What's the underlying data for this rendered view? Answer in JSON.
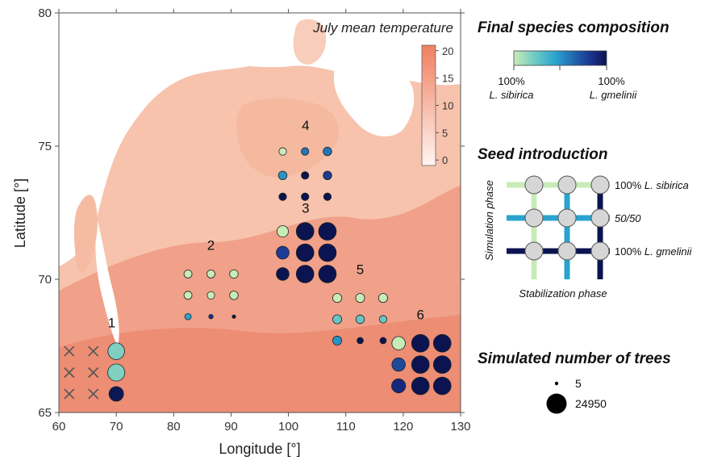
{
  "chart_data": {
    "type": "scatter",
    "title": "",
    "map_label": "July mean temperature",
    "xlabel": "Longitude [°]",
    "ylabel": "Latitude [°]",
    "xlim": [
      60,
      130
    ],
    "ylim": [
      65,
      80
    ],
    "x_ticks": [
      "60",
      "70",
      "80",
      "90",
      "100",
      "110",
      "120",
      "130"
    ],
    "y_ticks": [
      "65",
      "70",
      "75",
      "80"
    ],
    "temperature_colorbar": {
      "range": [
        -1,
        21
      ],
      "ticks": [
        "20",
        "15",
        "10",
        "5",
        "0"
      ],
      "colors": [
        "#fff5f0",
        "#f07f60"
      ]
    },
    "sites": [
      {
        "label": "1",
        "label_lon": 69.2,
        "label_lat": 68.2,
        "points": [
          {
            "lon": 61.8,
            "lat": 67.3,
            "status": "none"
          },
          {
            "lon": 66.0,
            "lat": 67.3,
            "status": "none"
          },
          {
            "lon": 70.0,
            "lat": 67.3,
            "comp": 0.15,
            "trees": 17000
          },
          {
            "lon": 61.8,
            "lat": 66.5,
            "status": "none"
          },
          {
            "lon": 66.0,
            "lat": 66.5,
            "status": "none"
          },
          {
            "lon": 70.0,
            "lat": 66.5,
            "comp": 0.15,
            "trees": 18000
          },
          {
            "lon": 61.8,
            "lat": 65.7,
            "status": "none"
          },
          {
            "lon": 66.0,
            "lat": 65.7,
            "status": "none"
          },
          {
            "lon": 70.0,
            "lat": 65.7,
            "comp": 0.98,
            "trees": 13000
          }
        ]
      },
      {
        "label": "2",
        "label_lon": 86.5,
        "label_lat": 71.1,
        "points": [
          {
            "lon": 82.5,
            "lat": 70.2,
            "comp": 0.0,
            "trees": 4000
          },
          {
            "lon": 86.5,
            "lat": 70.2,
            "comp": 0.0,
            "trees": 4000
          },
          {
            "lon": 90.5,
            "lat": 70.2,
            "comp": 0.0,
            "trees": 4500
          },
          {
            "lon": 82.5,
            "lat": 69.4,
            "comp": 0.0,
            "trees": 4000
          },
          {
            "lon": 86.5,
            "lat": 69.4,
            "comp": 0.0,
            "trees": 3500
          },
          {
            "lon": 90.5,
            "lat": 69.4,
            "comp": 0.0,
            "trees": 4500
          },
          {
            "lon": 82.5,
            "lat": 68.6,
            "comp": 0.4,
            "trees": 2500
          },
          {
            "lon": 86.5,
            "lat": 68.6,
            "comp": 0.8,
            "trees": 1200
          },
          {
            "lon": 90.5,
            "lat": 68.6,
            "comp": 1.0,
            "trees": 500
          }
        ]
      },
      {
        "label": "3",
        "label_lon": 103.0,
        "label_lat": 72.5,
        "points": [
          {
            "lon": 99.0,
            "lat": 71.8,
            "comp": 0.0,
            "trees": 8000
          },
          {
            "lon": 102.9,
            "lat": 71.8,
            "comp": 1.0,
            "trees": 19000
          },
          {
            "lon": 106.8,
            "lat": 71.8,
            "comp": 1.0,
            "trees": 19000
          },
          {
            "lon": 99.0,
            "lat": 71.0,
            "comp": 0.75,
            "trees": 10000
          },
          {
            "lon": 102.9,
            "lat": 71.0,
            "comp": 1.0,
            "trees": 19000
          },
          {
            "lon": 106.8,
            "lat": 71.0,
            "comp": 1.0,
            "trees": 19000
          },
          {
            "lon": 99.0,
            "lat": 70.2,
            "comp": 1.0,
            "trees": 10000
          },
          {
            "lon": 102.9,
            "lat": 70.2,
            "comp": 1.0,
            "trees": 19000
          },
          {
            "lon": 106.8,
            "lat": 70.2,
            "comp": 1.0,
            "trees": 19000
          }
        ]
      },
      {
        "label": "4",
        "label_lon": 103.0,
        "label_lat": 75.6,
        "points": [
          {
            "lon": 99.0,
            "lat": 74.8,
            "comp": 0.0,
            "trees": 3500
          },
          {
            "lon": 102.9,
            "lat": 74.8,
            "comp": 0.55,
            "trees": 3500
          },
          {
            "lon": 106.8,
            "lat": 74.8,
            "comp": 0.55,
            "trees": 4500
          },
          {
            "lon": 99.0,
            "lat": 73.9,
            "comp": 0.45,
            "trees": 4500
          },
          {
            "lon": 102.9,
            "lat": 73.9,
            "comp": 1.0,
            "trees": 3500
          },
          {
            "lon": 106.8,
            "lat": 73.9,
            "comp": 0.75,
            "trees": 4500
          },
          {
            "lon": 99.0,
            "lat": 73.1,
            "comp": 1.0,
            "trees": 3500
          },
          {
            "lon": 102.9,
            "lat": 73.1,
            "comp": 1.0,
            "trees": 3500
          },
          {
            "lon": 106.8,
            "lat": 73.1,
            "comp": 1.0,
            "trees": 3500
          }
        ]
      },
      {
        "label": "5",
        "label_lon": 112.5,
        "label_lat": 70.2,
        "points": [
          {
            "lon": 108.5,
            "lat": 69.3,
            "comp": 0.0,
            "trees": 5000
          },
          {
            "lon": 112.5,
            "lat": 69.3,
            "comp": 0.0,
            "trees": 5000
          },
          {
            "lon": 116.5,
            "lat": 69.3,
            "comp": 0.0,
            "trees": 5000
          },
          {
            "lon": 108.5,
            "lat": 68.5,
            "comp": 0.2,
            "trees": 5000
          },
          {
            "lon": 112.5,
            "lat": 68.5,
            "comp": 0.2,
            "trees": 4500
          },
          {
            "lon": 116.5,
            "lat": 68.5,
            "comp": 0.2,
            "trees": 3500
          },
          {
            "lon": 108.5,
            "lat": 67.7,
            "comp": 0.45,
            "trees": 5000
          },
          {
            "lon": 112.5,
            "lat": 67.7,
            "comp": 1.0,
            "trees": 2500
          },
          {
            "lon": 116.5,
            "lat": 67.7,
            "comp": 1.0,
            "trees": 2500
          }
        ]
      },
      {
        "label": "6",
        "label_lon": 123.0,
        "label_lat": 68.5,
        "points": [
          {
            "lon": 119.2,
            "lat": 67.6,
            "comp": 0.0,
            "trees": 11000
          },
          {
            "lon": 123.0,
            "lat": 67.6,
            "comp": 1.0,
            "trees": 19000
          },
          {
            "lon": 126.8,
            "lat": 67.6,
            "comp": 1.0,
            "trees": 19000
          },
          {
            "lon": 119.2,
            "lat": 66.8,
            "comp": 0.7,
            "trees": 11000
          },
          {
            "lon": 123.0,
            "lat": 66.8,
            "comp": 1.0,
            "trees": 19000
          },
          {
            "lon": 126.8,
            "lat": 66.8,
            "comp": 1.0,
            "trees": 19000
          },
          {
            "lon": 119.2,
            "lat": 66.0,
            "comp": 0.85,
            "trees": 12000
          },
          {
            "lon": 123.0,
            "lat": 66.0,
            "comp": 1.0,
            "trees": 19000
          },
          {
            "lon": 126.8,
            "lat": 66.0,
            "comp": 1.0,
            "trees": 19000
          }
        ]
      }
    ]
  },
  "legend": {
    "composition": {
      "title": "Final species composition",
      "colors": [
        "#c8ecb8",
        "#67c6c4",
        "#2aa3cf",
        "#2166ac",
        "#1a2e8a",
        "#0b1450"
      ],
      "left_pct": "100%",
      "left_species": "L. sibirica",
      "right_pct": "100%",
      "right_species": "L. gmelinii"
    },
    "seed": {
      "title": "Seed introduction",
      "y_axis_label": "Simulation phase",
      "x_axis_label": "Stabilization phase",
      "rows": [
        {
          "label_prefix": "100% ",
          "label_species": "L. sibirica",
          "color": "#c8ecb8"
        },
        {
          "label_prefix": "50/50",
          "label_species": "",
          "color": "#2aa3cf"
        },
        {
          "label_prefix": "100% ",
          "label_species": "L. gmelinii",
          "color": "#0b1450"
        }
      ]
    },
    "trees": {
      "title": "Simulated number of trees",
      "entries": [
        {
          "value": 5,
          "label": "5"
        },
        {
          "value": 24950,
          "label": "24950"
        }
      ]
    }
  }
}
